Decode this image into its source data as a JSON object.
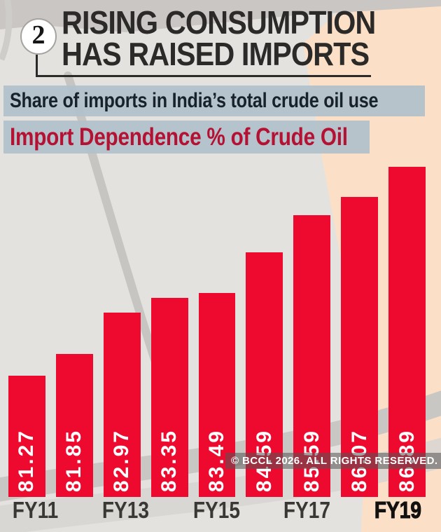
{
  "header": {
    "index_badge": "2",
    "title_line1": "RISING CONSUMPTION",
    "title_line2": "HAS RAISED IMPORTS"
  },
  "subtitles": {
    "line1": "Share of imports in India’s total crude oil use",
    "line2": "Import Dependence % of Crude Oil"
  },
  "watermark": "© BCCL 2026. ALL RIGHTS RESERVED.",
  "chart_data": {
    "type": "bar",
    "title": "Import Dependence % of Crude Oil",
    "subtitle": "Share of imports in India’s total crude oil use",
    "values": [
      81.27,
      81.85,
      82.97,
      83.35,
      83.49,
      84.59,
      85.59,
      86.07,
      86.89
    ],
    "x_tick_labels": [
      "FY11",
      "FY13",
      "FY15",
      "FY17",
      "FY19"
    ],
    "x_tick_bar_indices": [
      0,
      2,
      4,
      6,
      8
    ],
    "xlabel": "",
    "ylabel": "",
    "ylim": [
      78,
      87.1
    ],
    "grid": false,
    "legend": false,
    "value_labels_rotated": true
  },
  "colors": {
    "bar_red": "#ee0a2e",
    "highlight_bg": "#b1c1cb",
    "subtitle1_text": "#18222c",
    "subtitle2_text": "#b41133",
    "title_text": "#2b2a28",
    "page_bg": "#e4e2df",
    "peach": "#fcdfc7",
    "value_label": "#ffffff"
  }
}
